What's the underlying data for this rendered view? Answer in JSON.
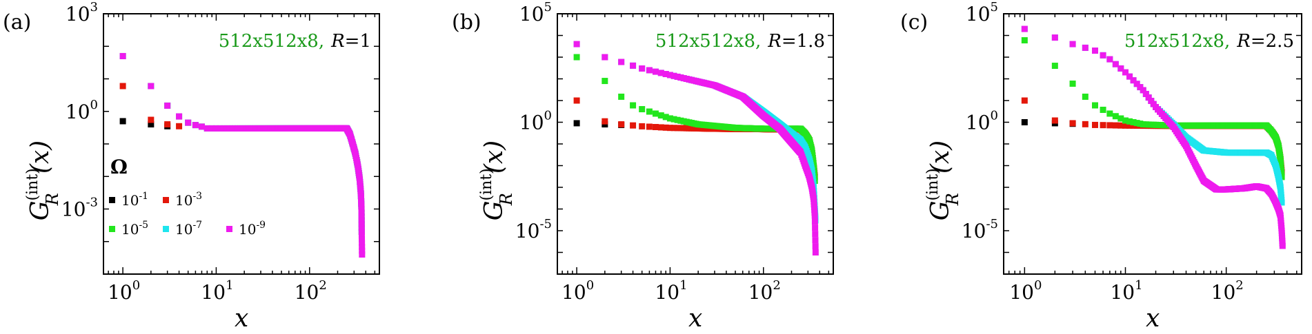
{
  "chart_data": [
    {
      "type": "scatter",
      "panel_label": "(a)",
      "annotation_system": "512x512x8,",
      "annotation_R": "R",
      "annotation_Rval": "=1",
      "xlabel": "x",
      "ylabel_main": "G",
      "ylabel_sup": "(int)",
      "ylabel_sub": "R",
      "ylabel_arg": "(x)",
      "xscale": "log",
      "yscale": "log",
      "xlim": [
        0.62,
        560
      ],
      "ylim": [
        1e-05,
        1000
      ],
      "xticks": [
        {
          "base": "10",
          "exp": "0",
          "v": 1
        },
        {
          "base": "10",
          "exp": "1",
          "v": 10
        },
        {
          "base": "10",
          "exp": "2",
          "v": 100
        }
      ],
      "yticks": [
        {
          "base": "10",
          "exp": "3",
          "v": 1000
        },
        {
          "base": "10",
          "exp": "0",
          "v": 1
        },
        {
          "base": "10",
          "exp": "-3",
          "v": 0.001
        }
      ],
      "legend": {
        "title": "Ω",
        "entries": [
          {
            "base": "10",
            "exp": "-1",
            "color": "#000000"
          },
          {
            "base": "10",
            "exp": "-3",
            "color": "#e3170a"
          },
          {
            "base": "10",
            "exp": "-5",
            "color": "#22e61d"
          },
          {
            "base": "10",
            "exp": "-7",
            "color": "#1ee5ee"
          },
          {
            "base": "10",
            "exp": "-9",
            "color": "#ee1bee"
          }
        ]
      },
      "series": [
        {
          "name": "Ω=10^-1",
          "color": "#000000",
          "points": [
            [
              1,
              0.5
            ],
            [
              2,
              0.4
            ],
            [
              3,
              0.35
            ]
          ]
        },
        {
          "name": "Ω=10^-3",
          "color": "#e3170a",
          "points": [
            [
              1,
              6
            ],
            [
              2,
              0.55
            ],
            [
              3,
              0.4
            ],
            [
              4,
              0.35
            ]
          ]
        },
        {
          "name": "Ω=10^-5",
          "color": "#22e61d",
          "plateau": 0.3,
          "plateau_end": 250,
          "end_drop": [
            [
              270,
              0.2
            ],
            [
              290,
              0.1
            ],
            [
              310,
              0.05
            ],
            [
              330,
              0.02
            ],
            [
              345,
              0.008
            ],
            [
              355,
              0.003
            ],
            [
              360,
              0.001
            ],
            [
              362,
              0.0002
            ]
          ],
          "points": [
            [
              1,
              50
            ],
            [
              2,
              6
            ],
            [
              3,
              1.5
            ],
            [
              4,
              0.7
            ],
            [
              5,
              0.45
            ],
            [
              6,
              0.38
            ],
            [
              7,
              0.34
            ]
          ]
        },
        {
          "name": "Ω=10^-7",
          "color": "#1ee5ee",
          "plateau": 0.3,
          "plateau_end": 250,
          "end_drop": [
            [
              270,
              0.2
            ],
            [
              290,
              0.1
            ],
            [
              310,
              0.05
            ],
            [
              330,
              0.02
            ],
            [
              345,
              0.008
            ],
            [
              355,
              0.003
            ],
            [
              360,
              0.001
            ],
            [
              362,
              0.0002
            ]
          ],
          "points": [
            [
              1,
              50
            ],
            [
              2,
              6
            ],
            [
              3,
              1.5
            ],
            [
              4,
              0.7
            ],
            [
              5,
              0.45
            ],
            [
              6,
              0.38
            ],
            [
              7,
              0.34
            ]
          ]
        },
        {
          "name": "Ω=10^-9",
          "color": "#ee1bee",
          "plateau": 0.3,
          "plateau_end": 250,
          "end_drop": [
            [
              270,
              0.2
            ],
            [
              290,
              0.1
            ],
            [
              310,
              0.05
            ],
            [
              330,
              0.02
            ],
            [
              345,
              0.008
            ],
            [
              355,
              0.003
            ],
            [
              360,
              0.001
            ],
            [
              362,
              0.0002
            ],
            [
              365,
              4e-05
            ]
          ],
          "points": [
            [
              1,
              50
            ],
            [
              2,
              6
            ],
            [
              3,
              1.5
            ],
            [
              4,
              0.7
            ],
            [
              5,
              0.45
            ],
            [
              6,
              0.38
            ],
            [
              7,
              0.34
            ]
          ]
        }
      ]
    },
    {
      "type": "scatter",
      "panel_label": "(b)",
      "annotation_system": "512x512x8,",
      "annotation_R": "R",
      "annotation_Rval": "=1.8",
      "xlabel": "x",
      "ylabel_main": "G",
      "ylabel_sup": "(int)",
      "ylabel_sub": "R",
      "ylabel_arg": "(x)",
      "xscale": "log",
      "yscale": "log",
      "xlim": [
        0.62,
        560
      ],
      "ylim": [
        1e-07,
        100000
      ],
      "xticks": [
        {
          "base": "10",
          "exp": "0",
          "v": 1
        },
        {
          "base": "10",
          "exp": "1",
          "v": 10
        },
        {
          "base": "10",
          "exp": "2",
          "v": 100
        }
      ],
      "yticks": [
        {
          "base": "10",
          "exp": "5",
          "v": 100000
        },
        {
          "base": "10",
          "exp": "0",
          "v": 1
        },
        {
          "base": "10",
          "exp": "-5",
          "v": 1e-05
        }
      ],
      "series": [
        {
          "name": "Ω=10^-1",
          "color": "#000000",
          "points": [
            [
              1,
              0.9
            ],
            [
              2,
              0.8
            ],
            [
              3,
              0.75
            ]
          ]
        },
        {
          "name": "Ω=10^-3",
          "color": "#e3170a",
          "curve": [
            [
              1,
              10
            ],
            [
              2,
              1.1
            ],
            [
              3,
              0.8
            ],
            [
              5,
              0.65
            ],
            [
              10,
              0.55
            ],
            [
              30,
              0.5
            ],
            [
              100,
              0.48
            ],
            [
              250,
              0.47
            ]
          ],
          "end_drop": [
            [
              280,
              0.3
            ],
            [
              310,
              0.15
            ],
            [
              330,
              0.05
            ],
            [
              345,
              0.01
            ],
            [
              355,
              0.003
            ]
          ]
        },
        {
          "name": "Ω=10^-5",
          "color": "#22e61d",
          "curve": [
            [
              1,
              1000
            ],
            [
              2,
              80
            ],
            [
              3,
              15
            ],
            [
              4,
              6
            ],
            [
              5,
              4
            ],
            [
              7,
              2.5
            ],
            [
              10,
              1.5
            ],
            [
              20,
              0.8
            ],
            [
              50,
              0.55
            ],
            [
              100,
              0.5
            ],
            [
              250,
              0.5
            ]
          ],
          "end_drop": [
            [
              280,
              0.3
            ],
            [
              310,
              0.15
            ],
            [
              330,
              0.05
            ],
            [
              345,
              0.01
            ],
            [
              355,
              0.002
            ]
          ]
        },
        {
          "name": "Ω=10^-7",
          "color": "#1ee5ee",
          "curve": [
            [
              1,
              4000
            ],
            [
              2,
              1000
            ],
            [
              3,
              600
            ],
            [
              5,
              300
            ],
            [
              10,
              150
            ],
            [
              30,
              50
            ],
            [
              60,
              15
            ],
            [
              100,
              3
            ],
            [
              150,
              0.8
            ],
            [
              200,
              0.3
            ],
            [
              250,
              0.15
            ]
          ],
          "end_drop": [
            [
              280,
              0.07
            ],
            [
              310,
              0.02
            ],
            [
              330,
              0.006
            ],
            [
              345,
              0.001
            ],
            [
              355,
              0.0001
            ],
            [
              360,
              3e-05
            ]
          ]
        },
        {
          "name": "Ω=10^-9",
          "color": "#ee1bee",
          "curve": [
            [
              1,
              4000
            ],
            [
              2,
              1000
            ],
            [
              3,
              600
            ],
            [
              5,
              300
            ],
            [
              10,
              150
            ],
            [
              30,
              50
            ],
            [
              60,
              15
            ],
            [
              100,
              2
            ],
            [
              150,
              0.5
            ],
            [
              200,
              0.12
            ],
            [
              250,
              0.04
            ]
          ],
          "end_drop": [
            [
              280,
              0.01
            ],
            [
              310,
              0.003
            ],
            [
              330,
              0.001
            ],
            [
              345,
              0.0003
            ],
            [
              355,
              5e-05
            ],
            [
              362,
              1e-06
            ]
          ]
        }
      ]
    },
    {
      "type": "scatter",
      "panel_label": "(c)",
      "annotation_system": "512x512x8,",
      "annotation_R": "R",
      "annotation_Rval": "=2.5",
      "xlabel": "x",
      "ylabel_main": "G",
      "ylabel_sup": "(int)",
      "ylabel_sub": "R",
      "ylabel_arg": "(x)",
      "xscale": "log",
      "yscale": "log",
      "xlim": [
        0.62,
        560
      ],
      "ylim": [
        1e-07,
        100000
      ],
      "xticks": [
        {
          "base": "10",
          "exp": "0",
          "v": 1
        },
        {
          "base": "10",
          "exp": "1",
          "v": 10
        },
        {
          "base": "10",
          "exp": "2",
          "v": 100
        }
      ],
      "yticks": [
        {
          "base": "10",
          "exp": "5",
          "v": 100000
        },
        {
          "base": "10",
          "exp": "0",
          "v": 1
        },
        {
          "base": "10",
          "exp": "-5",
          "v": 1e-05
        }
      ],
      "series": [
        {
          "name": "Ω=10^-1",
          "color": "#000000",
          "points": [
            [
              1,
              1
            ],
            [
              2,
              0.9
            ],
            [
              3,
              0.85
            ]
          ]
        },
        {
          "name": "Ω=10^-3",
          "color": "#e3170a",
          "curve": [
            [
              1,
              10
            ],
            [
              2,
              1.2
            ],
            [
              3,
              0.9
            ],
            [
              5,
              0.75
            ],
            [
              10,
              0.7
            ],
            [
              30,
              0.68
            ],
            [
              100,
              0.68
            ],
            [
              250,
              0.68
            ]
          ],
          "end_drop": [
            [
              280,
              0.4
            ],
            [
              310,
              0.2
            ],
            [
              330,
              0.08
            ],
            [
              345,
              0.02
            ],
            [
              355,
              0.005
            ]
          ]
        },
        {
          "name": "Ω=10^-5",
          "color": "#22e61d",
          "curve": [
            [
              1,
              6000
            ],
            [
              2,
              400
            ],
            [
              3,
              60
            ],
            [
              4,
              15
            ],
            [
              5,
              6
            ],
            [
              7,
              2.5
            ],
            [
              10,
              1.2
            ],
            [
              15,
              0.8
            ],
            [
              30,
              0.7
            ],
            [
              100,
              0.7
            ],
            [
              250,
              0.7
            ]
          ],
          "end_drop": [
            [
              280,
              0.4
            ],
            [
              310,
              0.2
            ],
            [
              330,
              0.08
            ],
            [
              345,
              0.02
            ],
            [
              355,
              0.003
            ]
          ]
        },
        {
          "name": "Ω=10^-7",
          "color": "#1ee5ee",
          "curve": [
            [
              1,
              20000
            ],
            [
              2,
              8000
            ],
            [
              3,
              4000
            ],
            [
              5,
              2000
            ],
            [
              7,
              800
            ],
            [
              10,
              200
            ],
            [
              15,
              30
            ],
            [
              20,
              5
            ],
            [
              30,
              0.8
            ],
            [
              40,
              0.2
            ],
            [
              60,
              0.05
            ],
            [
              100,
              0.04
            ],
            [
              250,
              0.04
            ]
          ],
          "end_drop": [
            [
              280,
              0.03
            ],
            [
              310,
              0.01
            ],
            [
              330,
              0.003
            ],
            [
              345,
              0.001
            ],
            [
              355,
              0.0002
            ]
          ]
        },
        {
          "name": "Ω=10^-9",
          "color": "#ee1bee",
          "curve": [
            [
              1,
              20000
            ],
            [
              2,
              8000
            ],
            [
              3,
              4000
            ],
            [
              5,
              2000
            ],
            [
              7,
              800
            ],
            [
              10,
              200
            ],
            [
              15,
              30
            ],
            [
              20,
              5
            ],
            [
              30,
              0.6
            ],
            [
              40,
              0.08
            ],
            [
              50,
              0.01
            ],
            [
              60,
              0.002
            ],
            [
              80,
              0.0008
            ],
            [
              100,
              0.0008
            ],
            [
              150,
              0.0009
            ],
            [
              200,
              0.0011
            ],
            [
              250,
              0.0009
            ]
          ],
          "end_drop": [
            [
              280,
              0.0005
            ],
            [
              310,
              0.0002
            ],
            [
              330,
              0.0001
            ],
            [
              345,
              5e-05
            ],
            [
              355,
              1e-05
            ],
            [
              362,
              2e-06
            ]
          ]
        }
      ]
    }
  ]
}
